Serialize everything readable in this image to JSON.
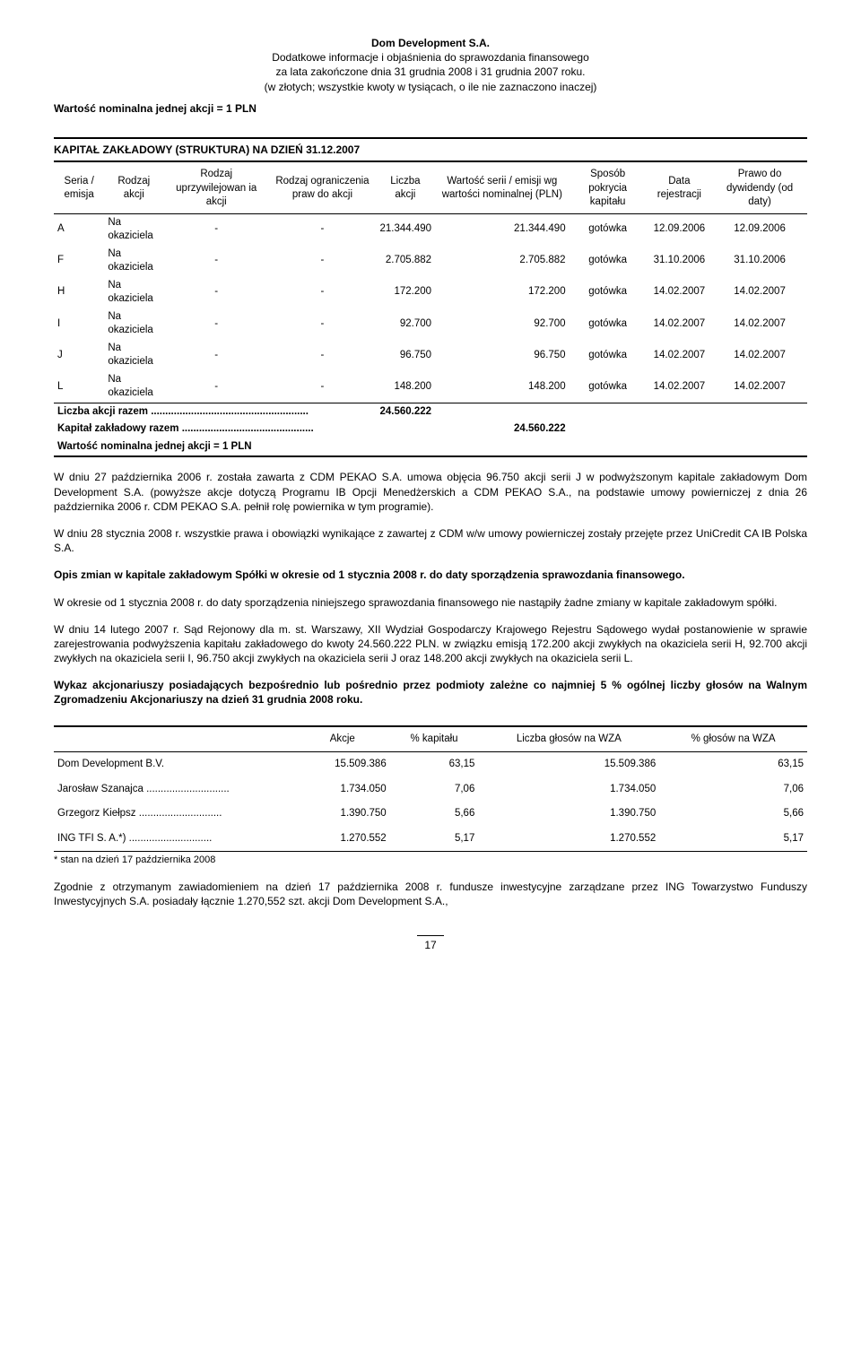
{
  "header": {
    "company": "Dom Development S.A.",
    "line2": "Dodatkowe informacje i objaśnienia do sprawozdania finansowego",
    "line3": "za lata zakończone dnia 31 grudnia 2008 i 31 grudnia 2007 roku.",
    "line4": "(w złotych; wszystkie kwoty w tysiącach, o ile nie zaznaczono inaczej)"
  },
  "nominal_line": "Wartość nominalna jednej akcji = 1 PLN",
  "struktura_title": "KAPITAŁ ZAKŁADOWY (STRUKTURA) NA DZIEŃ 31.12.2007",
  "struktura": {
    "columns": [
      "Seria / emisja",
      "Rodzaj akcji",
      "Rodzaj uprzywilejowan ia akcji",
      "Rodzaj ograniczenia praw do akcji",
      "Liczba akcji",
      "Wartość serii / emisji wg wartości nominalnej (PLN)",
      "Sposób pokrycia kapitału",
      "Data rejestracji",
      "Prawo do dywidendy (od daty)"
    ],
    "rows": [
      [
        "A",
        "Na okaziciela",
        "-",
        "-",
        "21.344.490",
        "21.344.490",
        "gotówka",
        "12.09.2006",
        "12.09.2006"
      ],
      [
        "F",
        "Na okaziciela",
        "-",
        "-",
        "2.705.882",
        "2.705.882",
        "gotówka",
        "31.10.2006",
        "31.10.2006"
      ],
      [
        "H",
        "Na okaziciela",
        "-",
        "-",
        "172.200",
        "172.200",
        "gotówka",
        "14.02.2007",
        "14.02.2007"
      ],
      [
        "I",
        "Na okaziciela",
        "-",
        "-",
        "92.700",
        "92.700",
        "gotówka",
        "14.02.2007",
        "14.02.2007"
      ],
      [
        "J",
        "Na okaziciela",
        "-",
        "-",
        "96.750",
        "96.750",
        "gotówka",
        "14.02.2007",
        "14.02.2007"
      ],
      [
        "L",
        "Na okaziciela",
        "-",
        "-",
        "148.200",
        "148.200",
        "gotówka",
        "14.02.2007",
        "14.02.2007"
      ]
    ],
    "total_shares_label": "Liczba akcji razem",
    "total_shares": "24.560.222",
    "total_capital_label": "Kapitał zakładowy razem",
    "total_capital": "24.560.222",
    "nominal_again": "Wartość nominalna jednej akcji = 1 PLN"
  },
  "para1": "W dniu 27 października 2006 r. została zawarta z CDM PEKAO S.A. umowa objęcia 96.750 akcji serii J w podwyższonym kapitale zakładowym Dom Development S.A. (powyższe akcje dotyczą Programu IB Opcji Menedżerskich a CDM PEKAO S.A., na podstawie umowy powierniczej z dnia 26 października 2006 r. CDM PEKAO S.A. pełnił rolę powiernika w tym programie).",
  "para2": "W dniu 28 stycznia 2008 r. wszystkie prawa i obowiązki wynikające z zawartej z CDM w/w umowy powierniczej zostały przejęte przez UniCredit CA IB Polska S.A.",
  "heading1": "Opis zmian w kapitale zakładowym Spółki w okresie od 1 stycznia 2008 r. do daty sporządzenia sprawozdania finansowego.",
  "para3": "W okresie od 1 stycznia 2008 r. do daty sporządzenia niniejszego sprawozdania finansowego nie nastąpiły żadne zmiany w kapitale zakładowym spółki.",
  "para4": "W dniu 14 lutego 2007 r. Sąd Rejonowy dla m. st. Warszawy, XII Wydział Gospodarczy Krajowego Rejestru Sądowego wydał postanowienie w sprawie zarejestrowania podwyższenia kapitału zakładowego do kwoty 24.560.222 PLN. w związku emisją 172.200 akcji zwykłych na okaziciela serii H, 92.700 akcji zwykłych na okaziciela serii I, 96.750 akcji zwykłych na okaziciela serii J oraz 148.200 akcji zwykłych na okaziciela serii L.",
  "heading2": "Wykaz akcjonariuszy posiadających  bezpośrednio lub pośrednio  przez podmioty zależne co najmniej 5 % ogólnej liczby głosów na Walnym Zgromadzeniu Akcjonariuszy na dzień 31 grudnia 2008 roku.",
  "shareholders": {
    "columns": [
      "",
      "Akcje",
      "% kapitału",
      "Liczba głosów na WZA",
      "% głosów na WZA"
    ],
    "rows": [
      {
        "name": "Dom Development B.V.",
        "shares": "15.509.386",
        "pct_cap": "63,15",
        "votes": "15.509.386",
        "pct_votes": "63,15",
        "dots": false
      },
      {
        "name": "Jarosław Szanajca",
        "shares": "1.734.050",
        "pct_cap": "7,06",
        "votes": "1.734.050",
        "pct_votes": "7,06",
        "dots": true
      },
      {
        "name": "Grzegorz Kiełpsz",
        "shares": "1.390.750",
        "pct_cap": "5,66",
        "votes": "1.390.750",
        "pct_votes": "5,66",
        "dots": true
      },
      {
        "name": "ING TFI  S. A.*)",
        "shares": "1.270.552",
        "pct_cap": "5,17",
        "votes": "1.270.552",
        "pct_votes": "5,17",
        "dots": true
      }
    ]
  },
  "footnote": "* stan na dzień 17 października 2008",
  "para5": "Zgodnie z otrzymanym zawiadomieniem na dzień 17 października 2008 r. fundusze inwestycyjne zarządzane przez ING Towarzystwo Funduszy Inwestycyjnych S.A. posiadały łącznie 1.270,552 szt. akcji Dom Development S.A.,",
  "page_number": "17"
}
